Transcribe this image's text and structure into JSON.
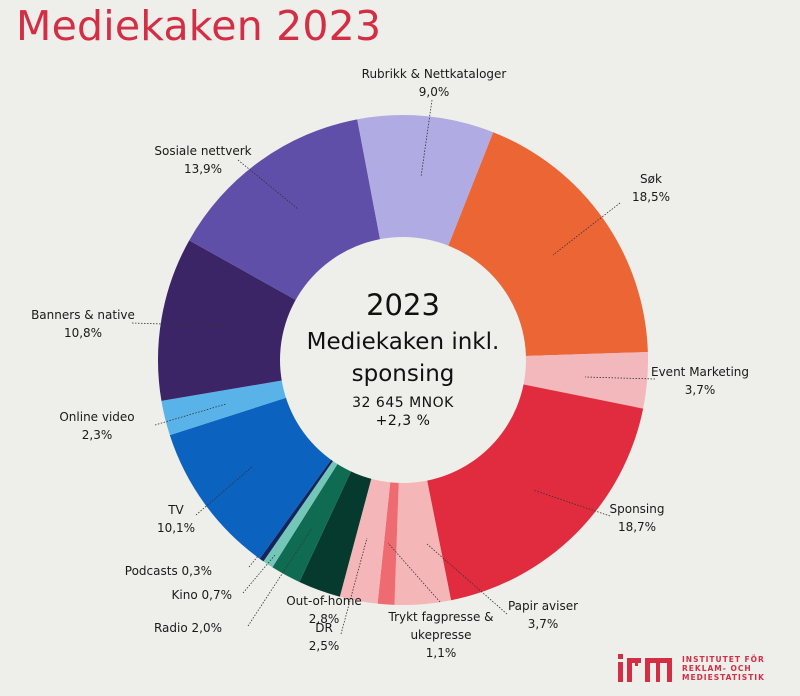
{
  "header": {
    "title": "Mediekaken 2023"
  },
  "center": {
    "year": "2023",
    "title_line1": "Mediekaken inkl.",
    "title_line2": "sponsing",
    "total": "32 645 MNOK",
    "growth": "+2,3 %"
  },
  "logo": {
    "icon": "irm-logo-icon",
    "line1": "INSTITUTET FÖR",
    "line2": "REKLAM- OCH",
    "line3": "MEDIESTATISTIK",
    "color": "#d42e45"
  },
  "chart_data": {
    "type": "pie",
    "variant": "donut",
    "title": "Mediekaken 2023",
    "center_text": [
      "2023",
      "Mediekaken inkl. sponsing",
      "32 645 MNOK",
      "+2,3 %"
    ],
    "unit": "%",
    "order": "clockwise",
    "slices": [
      {
        "label": "Søk",
        "value": 18.5,
        "value_label": "18,5%",
        "color": "#eb6535"
      },
      {
        "label": "Event Marketing",
        "value": 3.7,
        "value_label": "3,7%",
        "color": "#f3b8bb"
      },
      {
        "label": "Sponsing",
        "value": 18.7,
        "value_label": "18,7%",
        "color": "#e12c40"
      },
      {
        "label": "Papir aviser",
        "value": 3.7,
        "value_label": "3,7%",
        "color": "#f5b6b8"
      },
      {
        "label": "Trykt fagpresse & ukepresse",
        "value": 1.1,
        "value_label": "1,1%",
        "color": "#ef6b72"
      },
      {
        "label": "DR",
        "value": 2.5,
        "value_label": "2,5%",
        "color": "#f4b6b8"
      },
      {
        "label": "Out-of-home",
        "value": 2.8,
        "value_label": "2,8%",
        "color": "#063a2e"
      },
      {
        "label": "Radio",
        "value": 2.0,
        "value_label": "2,0%",
        "color": "#0f6c52"
      },
      {
        "label": "Kino",
        "value": 0.7,
        "value_label": "0,7%",
        "color": "#74c6b8"
      },
      {
        "label": "Podcasts",
        "value": 0.3,
        "value_label": "0,3%",
        "color": "#13255e"
      },
      {
        "label": "TV",
        "value": 10.1,
        "value_label": "10,1%",
        "color": "#0b62bf"
      },
      {
        "label": "Online video",
        "value": 2.3,
        "value_label": "2,3%",
        "color": "#5ab3e8"
      },
      {
        "label": "Banners & native",
        "value": 10.8,
        "value_label": "10,8%",
        "color": "#3b2566"
      },
      {
        "label": "Sosiale nettverk",
        "value": 13.9,
        "value_label": "13,9%",
        "color": "#5f4fa8"
      },
      {
        "label": "Rubrikk & Nettkataloger",
        "value": 9.0,
        "value_label": "9,0%",
        "color": "#b0abe2"
      }
    ]
  }
}
